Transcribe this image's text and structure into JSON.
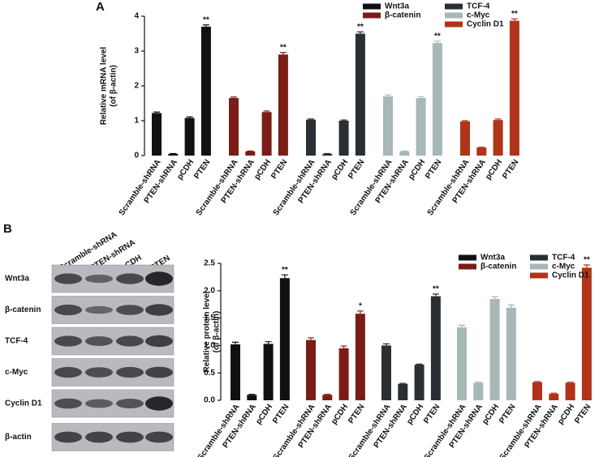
{
  "panels": [
    "A",
    "B"
  ],
  "blot": {
    "lanes": [
      "Scramble-shRNA",
      "PTEN-shRNA",
      "pCDH",
      "PTEN"
    ],
    "rows": [
      "Wnt3a",
      "β-catenin",
      "TCF-4",
      "c-Myc",
      "Cyclin D1",
      "β-actin"
    ]
  },
  "chart_data": [
    {
      "type": "bar",
      "ylabel": [
        "Relative mRNA level",
        "(of β-actin)"
      ],
      "categories": [
        "Scramble-shRNA",
        "PTEN-shRNA",
        "pCDH",
        "PTEN"
      ],
      "ylim": [
        0,
        4
      ],
      "yticks": [
        0,
        1,
        2,
        3,
        4
      ],
      "series": [
        {
          "name": "Wnt3a",
          "color": "#111111",
          "values": [
            1.22,
            0.05,
            1.08,
            3.7
          ],
          "errors": [
            0.03,
            0.01,
            0.03,
            0.05
          ],
          "significance": [
            null,
            null,
            null,
            "**"
          ]
        },
        {
          "name": "β-catenin",
          "color": "#7a1d18",
          "values": [
            1.65,
            0.12,
            1.25,
            2.9
          ],
          "errors": [
            0.03,
            0.01,
            0.03,
            0.06
          ],
          "significance": [
            null,
            null,
            null,
            "**"
          ]
        },
        {
          "name": "TCF-4",
          "color": "#2a2f33",
          "values": [
            1.03,
            0.05,
            1.0,
            3.5
          ],
          "errors": [
            0.02,
            0.01,
            0.02,
            0.05
          ],
          "significance": [
            null,
            null,
            null,
            "**"
          ]
        },
        {
          "name": "c-Myc",
          "color": "#a8b7b7",
          "values": [
            1.7,
            0.12,
            1.65,
            3.23
          ],
          "errors": [
            0.04,
            0.01,
            0.04,
            0.05
          ],
          "significance": [
            null,
            null,
            null,
            "**"
          ]
        },
        {
          "name": "Cyclin D1",
          "color": "#b0341a",
          "values": [
            0.98,
            0.23,
            1.02,
            3.87
          ],
          "errors": [
            0.02,
            0.01,
            0.03,
            0.05
          ],
          "significance": [
            null,
            null,
            null,
            "**"
          ]
        }
      ]
    },
    {
      "type": "bar",
      "ylabel": [
        "Relative protein level",
        "(of β-actin)"
      ],
      "categories": [
        "Scramble-shRNA",
        "PTEN-shRNA",
        "pCDH",
        "PTEN"
      ],
      "ylim": [
        0,
        2.5
      ],
      "yticks": [
        {
          "value": 0,
          "label": "0.0"
        },
        0.5,
        {
          "value": 1,
          "label": "1.0"
        },
        1.5,
        {
          "value": 2,
          "label": "2.0"
        },
        2.5
      ],
      "series": [
        {
          "name": "Wnt3a",
          "color": "#111111",
          "values": [
            1.02,
            0.1,
            1.03,
            2.23
          ],
          "errors": [
            0.04,
            0.01,
            0.04,
            0.06
          ],
          "significance": [
            null,
            null,
            null,
            "**"
          ]
        },
        {
          "name": "β-catenin",
          "color": "#7a1d18",
          "values": [
            1.1,
            0.1,
            0.95,
            1.58
          ],
          "errors": [
            0.04,
            0.01,
            0.04,
            0.05
          ],
          "significance": [
            null,
            null,
            null,
            "*"
          ]
        },
        {
          "name": "TCF-4",
          "color": "#2a2f33",
          "values": [
            1.0,
            0.3,
            0.65,
            1.9
          ],
          "errors": [
            0.03,
            0.01,
            0.01,
            0.04
          ],
          "significance": [
            null,
            null,
            null,
            "**"
          ]
        },
        {
          "name": "c-Myc",
          "color": "#a8b7b7",
          "values": [
            1.33,
            0.32,
            1.85,
            1.69
          ],
          "errors": [
            0.04,
            0.01,
            0.04,
            0.05
          ],
          "significance": [
            null,
            null,
            null,
            null
          ]
        },
        {
          "name": "Cyclin D1",
          "color": "#b0341a",
          "values": [
            0.33,
            0.12,
            0.32,
            2.42
          ],
          "errors": [
            0.01,
            0.01,
            0.01,
            0.05
          ],
          "significance": [
            null,
            null,
            null,
            "**"
          ]
        }
      ]
    }
  ]
}
